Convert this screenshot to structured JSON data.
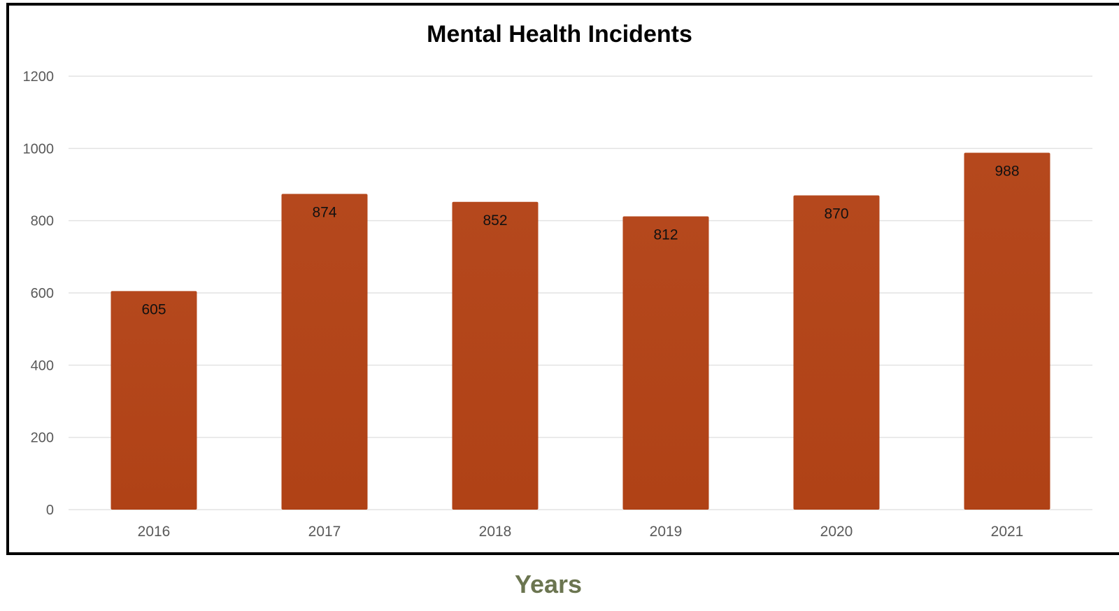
{
  "chart_data": {
    "type": "bar",
    "title": "Mental Health Incidents",
    "xlabel": "Years",
    "ylabel": "",
    "categories": [
      "2016",
      "2017",
      "2018",
      "2019",
      "2020",
      "2021"
    ],
    "values": [
      605,
      874,
      852,
      812,
      870,
      988
    ],
    "ylim": [
      0,
      1200
    ],
    "yticks": [
      "0",
      "200",
      "400",
      "600",
      "800",
      "1000",
      "1200"
    ],
    "grid": true,
    "legend": "none",
    "data_labels": true
  },
  "colors": {
    "bar_fill": "#B04216",
    "bar_top": "#B5481D",
    "grid": "#E3E3E3",
    "tick_label": "#595959",
    "x_axis_title": "#6B7550",
    "data_label": "#111111",
    "frame": "#000000"
  }
}
